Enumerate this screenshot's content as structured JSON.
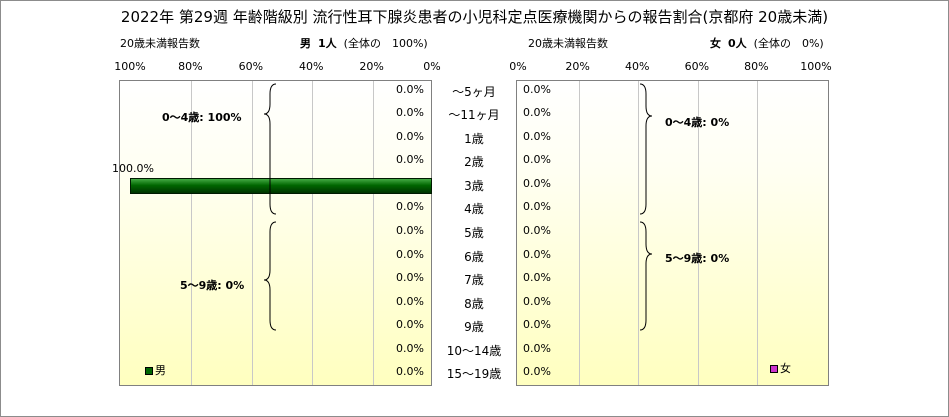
{
  "title": "2022年 第29週 年齢階級別 流行性耳下腺炎患者の小児科定点医療機関からの報告割合(京都府 20歳未満)",
  "left_panel": {
    "sublabel": "20歳未満報告数",
    "gender_label": "男",
    "count_label": "1人",
    "share_label": "(全体の　100%)",
    "legend": "男",
    "legend_color": "#006600",
    "group_labels": [
      "0〜4歳: 100%",
      "5〜9歳: 0%"
    ],
    "bar_label": "100.0%"
  },
  "right_panel": {
    "sublabel": "20歳未満報告数",
    "gender_label": "女",
    "count_label": "0人",
    "share_label": "(全体の　0%)",
    "legend": "女",
    "legend_color": "#cc33cc",
    "group_labels": [
      "0〜4歳: 0%",
      "5〜9歳: 0%"
    ]
  },
  "chart_data": {
    "type": "bar",
    "categories": [
      "〜5ヶ月",
      "〜11ヶ月",
      "1歳",
      "2歳",
      "3歳",
      "4歳",
      "5歳",
      "6歳",
      "7歳",
      "8歳",
      "9歳",
      "10〜14歳",
      "15〜19歳"
    ],
    "series": [
      {
        "name": "男",
        "values": [
          0,
          0,
          0,
          0,
          100,
          0,
          0,
          0,
          0,
          0,
          0,
          0,
          0
        ],
        "labels": [
          "0.0%",
          "0.0%",
          "0.0%",
          "0.0%",
          "100.0%",
          "0.0%",
          "0.0%",
          "0.0%",
          "0.0%",
          "0.0%",
          "0.0%",
          "0.0%",
          "0.0%"
        ]
      },
      {
        "name": "女",
        "values": [
          0,
          0,
          0,
          0,
          0,
          0,
          0,
          0,
          0,
          0,
          0,
          0,
          0
        ],
        "labels": [
          "0.0%",
          "0.0%",
          "0.0%",
          "0.0%",
          "0.0%",
          "0.0%",
          "0.0%",
          "0.0%",
          "0.0%",
          "0.0%",
          "0.0%",
          "0.0%",
          "0.0%"
        ]
      }
    ],
    "left_ticks": [
      "100%",
      "80%",
      "60%",
      "40%",
      "20%",
      "0%"
    ],
    "right_ticks": [
      "0%",
      "20%",
      "40%",
      "60%",
      "80%",
      "100%"
    ],
    "xlim": [
      0,
      100
    ],
    "grid": true
  }
}
